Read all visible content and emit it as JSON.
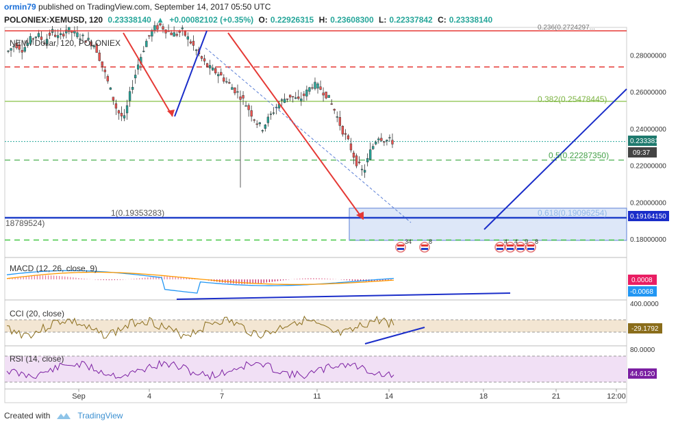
{
  "header": {
    "author": "ormin79",
    "published_text": "published on TradingView.com, September 14, 2017 05:50 UTC",
    "symbol": "POLONIEX:XEMUSD, 120",
    "close_value": "0.23338140",
    "change": "+0.00082102 (+0.35%)",
    "open_label": "O:",
    "open": "0.22926315",
    "high_label": "H:",
    "high": "0.23608300",
    "low_label": "L:",
    "low": "0.22337842",
    "close_label": "C:",
    "close": "0.23338140"
  },
  "chart_data": {
    "type": "line",
    "subtype": "candlestick",
    "series_label": "NEM / Dollar, 120, POLONIEX",
    "y_range": [
      0.17,
      0.295
    ],
    "y_ticks": [
      "0.28000000",
      "0.26000000",
      "0.24000000",
      "0.22000000",
      "0.20000000",
      "0.18000000"
    ],
    "x_ticks": [
      "Sep",
      "4",
      "7",
      "11",
      "14",
      "18",
      "21",
      "12:00"
    ],
    "last_price": "0.23338140",
    "countdown": "09:37",
    "price_path": [
      0.282,
      0.286,
      0.283,
      0.288,
      0.291,
      0.287,
      0.293,
      0.289,
      0.294,
      0.292,
      0.29,
      0.288,
      0.285,
      0.274,
      0.262,
      0.25,
      0.245,
      0.262,
      0.276,
      0.287,
      0.294,
      0.296,
      0.293,
      0.291,
      0.293,
      0.288,
      0.282,
      0.276,
      0.272,
      0.27,
      0.266,
      0.262,
      0.258,
      0.252,
      0.245,
      0.24,
      0.246,
      0.252,
      0.256,
      0.258,
      0.255,
      0.259,
      0.264,
      0.262,
      0.258,
      0.25,
      0.24,
      0.232,
      0.222,
      0.216,
      0.228,
      0.236,
      0.234,
      0.233
    ],
    "horizontal_lines": [
      {
        "value": 0.2735,
        "style": "dashed",
        "color": "#e53935"
      },
      {
        "value": 0.2548,
        "style": "solid",
        "color": "#9ccc65"
      },
      {
        "value": 0.2229,
        "style": "dashed",
        "color": "#66bb6a"
      },
      {
        "value": 0.1916,
        "style": "solid",
        "color": "#1e3fc9"
      },
      {
        "value": 0.1795,
        "style": "dashed",
        "color": "#43c743"
      }
    ],
    "fib_labels": {
      "f382": "0.382(0.25478445)",
      "f5": "0.5(0.22287350)",
      "f618": "0.618(0.19096254)",
      "f1": "1(0.19353283)",
      "f_left": "18789524)",
      "f_top": "0.236(0.2724297..."
    },
    "price_badge": "0.19164150",
    "y_axis_extra": "0.18000000",
    "events": [
      "34",
      "8",
      "4",
      "4",
      "9",
      "8"
    ],
    "macd": {
      "label": "MACD (12, 26, close, 9)",
      "value_badge": "0.0008",
      "signal_badge": "-0.0068"
    },
    "cci": {
      "label": "CCI (20, close)",
      "tick": "400.0000",
      "value_badge": "-29.1792"
    },
    "rsi": {
      "label": "RSI (14, close)",
      "tick": "80.0000",
      "value_badge": "44.6120"
    },
    "colors": {
      "up": "#26a69a",
      "down": "#ef5350",
      "arrow": "#e53935",
      "trend": "#1a2dc9",
      "macd_line": "#2196f3",
      "signal_line": "#ff9800",
      "cci_line": "#8a6d1b",
      "rsi_line": "#7b1fa2"
    }
  },
  "footer": {
    "created_with": "Created with",
    "brand": "TradingView"
  }
}
